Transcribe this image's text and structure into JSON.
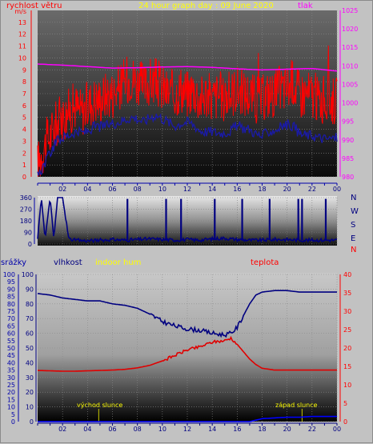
{
  "chart_data": [
    {
      "id": "wind-pressure",
      "type": "line",
      "title": "24 hour graph day : 09 June 2020",
      "left_label": "rychlost větru",
      "right_label": "tlak",
      "x_ticks": [
        "02",
        "04",
        "06",
        "08",
        "10",
        "12",
        "14",
        "16",
        "18",
        "20",
        "22",
        "00"
      ],
      "y_left_ticks": [
        "0",
        "1",
        "2",
        "3",
        "4",
        "5",
        "6",
        "7",
        "8",
        "9",
        "10",
        "11",
        "12",
        "13"
      ],
      "y_left_top_tick": "m/s",
      "y_right_ticks": [
        "980",
        "985",
        "990",
        "995",
        "1000",
        "1005",
        "1010",
        "1015",
        "1020",
        "1025"
      ],
      "ylim_left": [
        0,
        14
      ],
      "ylim_right": [
        980,
        1025
      ],
      "x_range_hours": [
        0,
        24
      ],
      "colors": {
        "gust": "#ff0000",
        "avg": "#1a1aaa",
        "pressure": "#ff00ff",
        "title": "#ffff00"
      },
      "series": [
        {
          "name": "gust",
          "x": [
            0,
            0.5,
            1,
            1.5,
            2,
            2.5,
            3,
            3.5,
            4,
            4.5,
            5,
            5.5,
            6,
            6.5,
            7,
            7.5,
            8,
            8.5,
            9,
            9.5,
            10,
            10.5,
            11,
            11.5,
            12,
            12.5,
            13,
            13.5,
            14,
            14.5,
            15,
            15.5,
            16,
            16.5,
            17,
            17.5,
            18,
            18.5,
            19,
            19.5,
            20,
            20.5,
            21,
            21.5,
            22,
            22.5,
            23,
            23.5,
            24
          ],
          "values": [
            1,
            2.5,
            3.5,
            4.5,
            5,
            5.5,
            6,
            5.5,
            6,
            6.5,
            6.5,
            7,
            7,
            7.5,
            8,
            8.5,
            8,
            7.5,
            8,
            8,
            7.5,
            7,
            7,
            7.5,
            7,
            7.5,
            6.5,
            7,
            6.5,
            7,
            6.5,
            7,
            7.5,
            7,
            7,
            6.5,
            6.5,
            7,
            7,
            7.5,
            7.5,
            8,
            7,
            7,
            7,
            6.5,
            6.5,
            6.5,
            6.5
          ]
        },
        {
          "name": "average",
          "x": [
            0,
            0.5,
            1,
            1.5,
            2,
            2.5,
            3,
            3.5,
            4,
            4.5,
            5,
            5.5,
            6,
            6.5,
            7,
            7.5,
            8,
            8.5,
            9,
            9.5,
            10,
            10.5,
            11,
            11.5,
            12,
            12.5,
            13,
            13.5,
            14,
            14.5,
            15,
            15.5,
            16,
            16.5,
            17,
            17.5,
            18,
            18.5,
            19,
            19.5,
            20,
            20.5,
            21,
            21.5,
            22,
            22.5,
            23,
            23.5,
            24
          ],
          "values": [
            0,
            1,
            2,
            3,
            3.3,
            3.5,
            3.8,
            3.7,
            3.8,
            4.2,
            4.2,
            4.3,
            4.5,
            4.6,
            4.8,
            5,
            4.9,
            4.6,
            5,
            5.2,
            4.9,
            4.6,
            4.3,
            4.5,
            4.6,
            4.4,
            3.9,
            3.8,
            3.8,
            3.7,
            3.7,
            3.9,
            4.3,
            4.1,
            4,
            3.6,
            3.4,
            3.8,
            3.9,
            4.2,
            4.4,
            4.3,
            3.6,
            3.5,
            3.5,
            3.3,
            3.2,
            3.2,
            3.3
          ]
        },
        {
          "name": "pressure",
          "x": [
            0,
            2,
            4,
            6,
            8,
            10,
            12,
            14,
            16,
            18,
            20,
            22,
            24
          ],
          "values": [
            1010.5,
            1010.2,
            1009.8,
            1009.4,
            1009.5,
            1009.7,
            1009.8,
            1009.6,
            1009.2,
            1008.9,
            1009.1,
            1009.3,
            1008.6
          ]
        }
      ]
    },
    {
      "id": "wind-direction",
      "type": "line",
      "left_ticks": [
        "0",
        "90",
        "180",
        "270",
        "360"
      ],
      "ylim": [
        0,
        360
      ],
      "compass_labels": [
        "N",
        "W",
        "S",
        "E",
        "N"
      ],
      "colors": {
        "direction": "#000080"
      },
      "series": [
        {
          "name": "direction",
          "x": [
            0,
            0.3,
            0.6,
            1,
            1.3,
            1.6,
            2,
            2.5,
            3,
            4,
            5,
            6,
            7,
            8,
            9,
            10,
            11,
            12,
            13,
            14,
            15,
            16,
            17,
            18,
            19,
            20,
            21,
            22,
            23,
            24
          ],
          "values": [
            40,
            360,
            40,
            360,
            40,
            360,
            360,
            40,
            30,
            25,
            30,
            35,
            30,
            35,
            40,
            35,
            30,
            35,
            30,
            40,
            45,
            35,
            30,
            30,
            35,
            35,
            30,
            30,
            30,
            30
          ]
        }
      ],
      "spike_hours": [
        7.2,
        10.3,
        11.5,
        14.2,
        16.4,
        18.6,
        20.9,
        21.2,
        23.1
      ]
    },
    {
      "id": "humidity-temperature",
      "type": "line",
      "labels": {
        "rain": "srážky",
        "humidity": "vlhkost",
        "indoor": "indoor hum",
        "temperature": "teplota"
      },
      "y_rain_ticks": [
        "0",
        "5",
        "10",
        "15",
        "20",
        "25",
        "30",
        "35",
        "40",
        "45",
        "50",
        "55",
        "60",
        "65",
        "70",
        "75",
        "80",
        "85",
        "90",
        "95",
        "100"
      ],
      "y_hum_ticks": [
        "0",
        "10",
        "20",
        "30",
        "40",
        "50",
        "60",
        "70",
        "80",
        "90",
        "100"
      ],
      "y_temp_ticks": [
        "0",
        "5",
        "10",
        "15",
        "20",
        "25",
        "30",
        "35",
        "40"
      ],
      "x_ticks": [
        "02",
        "04",
        "06",
        "08",
        "10",
        "12",
        "14",
        "16",
        "18",
        "20",
        "22",
        "00"
      ],
      "ylim_hum": [
        0,
        100
      ],
      "ylim_temp": [
        0,
        40
      ],
      "annotations": [
        "východ slunce",
        "západ slunce"
      ],
      "sunrise_hour": 4.9,
      "sunset_hour": 21.2,
      "colors": {
        "humidity": "#000080",
        "temperature": "#e00000",
        "indoor": "#ffff00",
        "rain": "#0000ff"
      },
      "series": [
        {
          "name": "humidity",
          "x": [
            0,
            1,
            2,
            3,
            4,
            5,
            6,
            7,
            8,
            9,
            10,
            11,
            12,
            13,
            14,
            15,
            15.5,
            16,
            16.5,
            17,
            17.5,
            18,
            19,
            20,
            21,
            22,
            23,
            24
          ],
          "values": [
            87,
            86,
            84,
            83,
            82,
            82,
            80,
            79,
            77,
            73,
            68,
            65,
            63,
            62,
            60,
            59,
            60,
            64,
            72,
            80,
            86,
            88,
            89,
            89,
            88,
            88,
            88,
            88
          ]
        },
        {
          "name": "temperature",
          "x": [
            0,
            1,
            2,
            3,
            4,
            5,
            6,
            7,
            8,
            9,
            10,
            11,
            12,
            13,
            14,
            15,
            15.5,
            16,
            16.5,
            17,
            17.5,
            18,
            19,
            20,
            21,
            22,
            23,
            24
          ],
          "values": [
            13.9,
            13.8,
            13.7,
            13.7,
            13.8,
            13.9,
            14,
            14.2,
            14.6,
            15.3,
            16.5,
            18,
            19.5,
            20.3,
            21.6,
            22,
            22.7,
            21,
            19,
            17,
            15.5,
            14.5,
            14,
            14,
            14,
            14,
            14,
            14
          ]
        },
        {
          "name": "rain",
          "x": [
            0,
            17,
            17.5,
            18,
            19,
            20,
            21,
            22,
            23,
            24
          ],
          "values": [
            0,
            0,
            1,
            2,
            2.5,
            3,
            3,
            3.5,
            3.5,
            3.5
          ]
        }
      ]
    }
  ]
}
